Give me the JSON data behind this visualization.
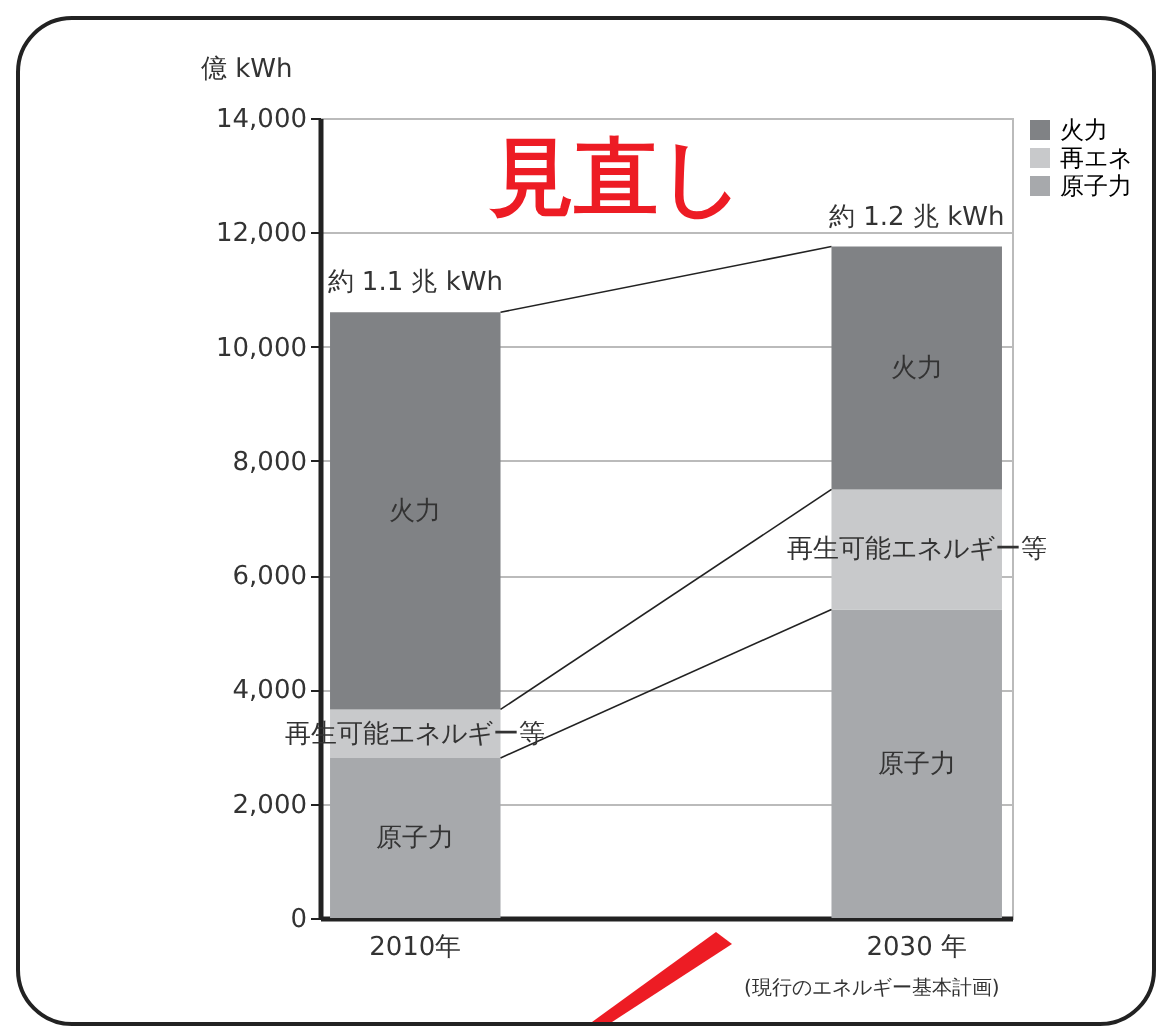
{
  "chart_data": {
    "type": "bar",
    "stacked": true,
    "ylabel": "億 kWh",
    "categories": [
      "2010年",
      "2030 年"
    ],
    "series": [
      {
        "name": "原子力",
        "color": "#a7a9ac",
        "values": [
          2800,
          5400
        ]
      },
      {
        "name": "再エネ",
        "color": "#c8c9cb",
        "values": [
          850,
          2100
        ]
      },
      {
        "name": "火力",
        "color": "#808285",
        "values": [
          6950,
          4250
        ]
      }
    ],
    "ylim": [
      0,
      14000
    ],
    "yticks": [
      0,
      {
        "value": 2000,
        "label": "2,000"
      },
      {
        "value": 4000,
        "label": "4,000"
      },
      {
        "value": 6000,
        "label": "6,000"
      },
      {
        "value": 8000,
        "label": "8,000"
      },
      {
        "value": 10000,
        "label": "10,000"
      },
      {
        "value": 12000,
        "label": "12,000"
      },
      {
        "value": 14000,
        "label": "14,000"
      }
    ],
    "grid": "y",
    "legend": "right",
    "annotations": [
      {
        "text": "約 1.1 兆 kWh",
        "x": "2010年",
        "y": 10600
      },
      {
        "text": "約 1.2 兆 kWh",
        "x": "2030 年",
        "y": 11750
      },
      "火力",
      "再生可能エネルギー等",
      "原子力",
      "火力",
      "再生可能エネルギー等",
      "原子力",
      "(現行のエネルギー基本計画)",
      "見直し"
    ]
  }
}
